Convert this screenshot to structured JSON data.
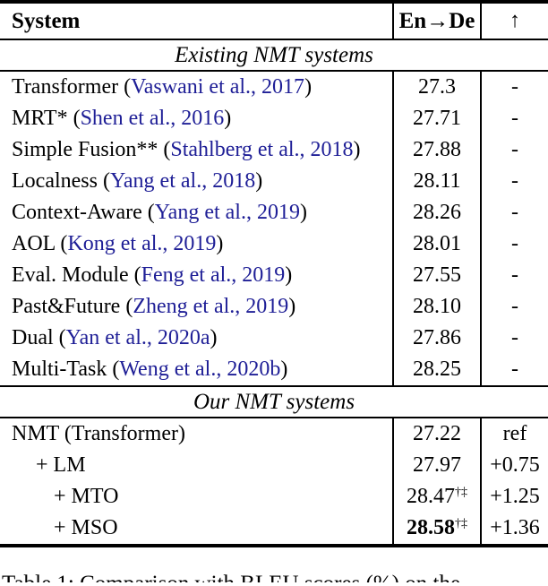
{
  "colors": {
    "citation_blue": "#1E1E96",
    "rule_black": "#000000"
  },
  "table": {
    "headers": {
      "system": "System",
      "ende": "En→De",
      "arrow": "↑"
    },
    "sections": [
      {
        "label": "Existing NMT systems",
        "rows": [
          {
            "prefix": "Transformer (",
            "cite": "Vaswani et al., 2017",
            "suffix": ")",
            "indent": 0,
            "score": "27.3",
            "sup": "",
            "bold": false,
            "delta": "-"
          },
          {
            "prefix": "MRT* (",
            "cite": "Shen et al., 2016",
            "suffix": ")",
            "indent": 0,
            "score": "27.71",
            "sup": "",
            "bold": false,
            "delta": "-"
          },
          {
            "prefix": "Simple Fusion** (",
            "cite": "Stahlberg et al., 2018",
            "suffix": ")",
            "indent": 0,
            "score": "27.88",
            "sup": "",
            "bold": false,
            "delta": "-"
          },
          {
            "prefix": "Localness (",
            "cite": "Yang et al., 2018",
            "suffix": ")",
            "indent": 0,
            "score": "28.11",
            "sup": "",
            "bold": false,
            "delta": "-"
          },
          {
            "prefix": "Context-Aware (",
            "cite": "Yang et al., 2019",
            "suffix": ")",
            "indent": 0,
            "score": "28.26",
            "sup": "",
            "bold": false,
            "delta": "-"
          },
          {
            "prefix": "AOL (",
            "cite": "Kong et al., 2019",
            "suffix": ")",
            "indent": 0,
            "score": "28.01",
            "sup": "",
            "bold": false,
            "delta": "-"
          },
          {
            "prefix": "Eval. Module (",
            "cite": "Feng et al., 2019",
            "suffix": ")",
            "indent": 0,
            "score": "27.55",
            "sup": "",
            "bold": false,
            "delta": "-"
          },
          {
            "prefix": "Past&Future (",
            "cite": "Zheng et al., 2019",
            "suffix": ")",
            "indent": 0,
            "score": "28.10",
            "sup": "",
            "bold": false,
            "delta": "-"
          },
          {
            "prefix": "Dual (",
            "cite": "Yan et al., 2020a",
            "suffix": ")",
            "indent": 0,
            "score": "27.86",
            "sup": "",
            "bold": false,
            "delta": "-"
          },
          {
            "prefix": "Multi-Task (",
            "cite": "Weng et al., 2020b",
            "suffix": ")",
            "indent": 0,
            "score": "28.25",
            "sup": "",
            "bold": false,
            "delta": "-"
          }
        ]
      },
      {
        "label": "Our NMT systems",
        "rows": [
          {
            "prefix": "NMT (Transformer)",
            "cite": "",
            "suffix": "",
            "indent": 0,
            "score": "27.22",
            "sup": "",
            "bold": false,
            "delta": "ref"
          },
          {
            "prefix": "+ LM",
            "cite": "",
            "suffix": "",
            "indent": 1,
            "score": "27.97",
            "sup": "",
            "bold": false,
            "delta": "+0.75"
          },
          {
            "prefix": "+ MTO",
            "cite": "",
            "suffix": "",
            "indent": 2,
            "score": "28.47",
            "sup": "†‡",
            "bold": false,
            "delta": "+1.25"
          },
          {
            "prefix": "+ MSO",
            "cite": "",
            "suffix": "",
            "indent": 2,
            "score": "28.58",
            "sup": "†‡",
            "bold": true,
            "delta": "+1.36"
          }
        ]
      }
    ]
  },
  "caption": "Table 1: Comparison with BLEU scores (%) on the"
}
